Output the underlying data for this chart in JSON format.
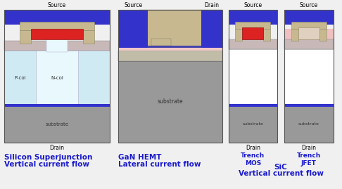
{
  "bg_color": "#f0f0f0",
  "title1": "Silicon Superjunction",
  "title1b": "Vertical current flow",
  "title2": "GaN HEMT",
  "title2b": "Lateral current flow",
  "title3": "SiC",
  "title3b": "Vertical current flow",
  "label_source": "Source",
  "label_drain": "Drain",
  "label_substrate": "substrate",
  "label_pcol": "P-col",
  "label_ncol": "N-col",
  "label_trenchmos": "Trench\nMOS",
  "label_trenchjfet": "Trench\nJFET",
  "col_blue": "#3333cc",
  "col_gray": "#999999",
  "col_tan": "#c8b890",
  "col_red": "#dd2222",
  "col_lightblue": "#c8e8f0",
  "col_white": "#ffffff",
  "col_hatch": "#cccccc",
  "col_pink": "#ffcccc",
  "col_darkblue": "#1a1acc",
  "col_outline": "#555555",
  "col_hatchgray": "#b8b8c8",
  "col_body_blue": "#d0eaf4"
}
